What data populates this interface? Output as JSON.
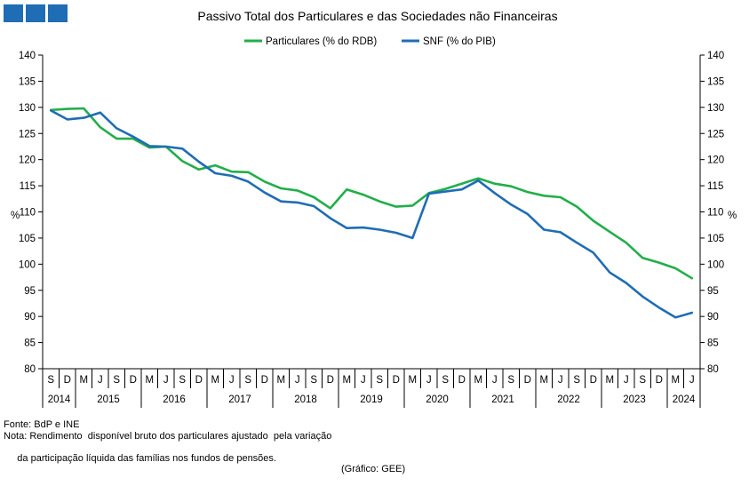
{
  "logo": {
    "squares": 3,
    "color": "#1f6db5"
  },
  "footer": {
    "source": "Fonte: BdP e INE",
    "note_line1": "Nota: Rendimento  disponível bruto dos particulares ajustado  pela variação",
    "note_line2": " da participação líquida das famílias nos fundos de pensões.",
    "credit": "(Gráfico: GEE)"
  },
  "chart_data": {
    "type": "line",
    "title": "Passivo Total dos Particulares e das Sociedades não Financeiras",
    "ylabel_left": "%",
    "ylabel_right": "%",
    "ylim": [
      80,
      140
    ],
    "yticks": [
      80,
      85,
      90,
      95,
      100,
      105,
      110,
      115,
      120,
      125,
      130,
      135,
      140
    ],
    "grid": false,
    "legend_position": "top-center",
    "x": [
      "S",
      "D",
      "M",
      "J",
      "S",
      "D",
      "M",
      "J",
      "S",
      "D",
      "M",
      "J",
      "S",
      "D",
      "M",
      "J",
      "S",
      "D",
      "M",
      "J",
      "S",
      "D",
      "M",
      "J",
      "S",
      "D",
      "M",
      "J",
      "S",
      "D",
      "M",
      "J",
      "S",
      "D",
      "M",
      "J",
      "S",
      "D",
      "M",
      "J"
    ],
    "years": [
      {
        "label": "2014",
        "start": 0,
        "count": 2
      },
      {
        "label": "2015",
        "start": 2,
        "count": 4
      },
      {
        "label": "2016",
        "start": 6,
        "count": 4
      },
      {
        "label": "2017",
        "start": 10,
        "count": 4
      },
      {
        "label": "2018",
        "start": 14,
        "count": 4
      },
      {
        "label": "2019",
        "start": 18,
        "count": 4
      },
      {
        "label": "2020",
        "start": 22,
        "count": 4
      },
      {
        "label": "2021",
        "start": 26,
        "count": 4
      },
      {
        "label": "2022",
        "start": 30,
        "count": 4
      },
      {
        "label": "2023",
        "start": 34,
        "count": 4
      },
      {
        "label": "2024",
        "start": 38,
        "count": 2
      }
    ],
    "series": [
      {
        "name": "Particulares (% do RDB)",
        "color": "#22ae4a",
        "values": [
          129.5,
          129.7,
          129.8,
          126.2,
          124.0,
          124.0,
          122.3,
          122.5,
          119.7,
          118.1,
          118.9,
          117.7,
          117.6,
          115.8,
          114.5,
          114.1,
          112.8,
          110.7,
          114.3,
          113.3,
          112.0,
          111.0,
          111.2,
          113.6,
          114.4,
          115.4,
          116.4,
          115.4,
          114.9,
          113.8,
          113.1,
          112.8,
          111.0,
          108.3,
          106.2,
          104.1,
          101.2,
          100.3,
          99.2,
          97.3
        ]
      },
      {
        "name": "SNF (% do PIB)",
        "color": "#1f6db5",
        "values": [
          129.4,
          127.7,
          128.0,
          129.0,
          126.0,
          124.4,
          122.6,
          122.5,
          122.1,
          119.6,
          117.4,
          116.9,
          115.8,
          113.7,
          112.0,
          111.8,
          111.1,
          108.8,
          106.9,
          107.0,
          106.6,
          106.0,
          105.0,
          113.5,
          113.9,
          114.3,
          116.0,
          113.6,
          111.4,
          109.6,
          106.6,
          106.1,
          104.1,
          102.2,
          98.4,
          96.4,
          93.8,
          91.7,
          89.8,
          90.7
        ]
      }
    ]
  }
}
